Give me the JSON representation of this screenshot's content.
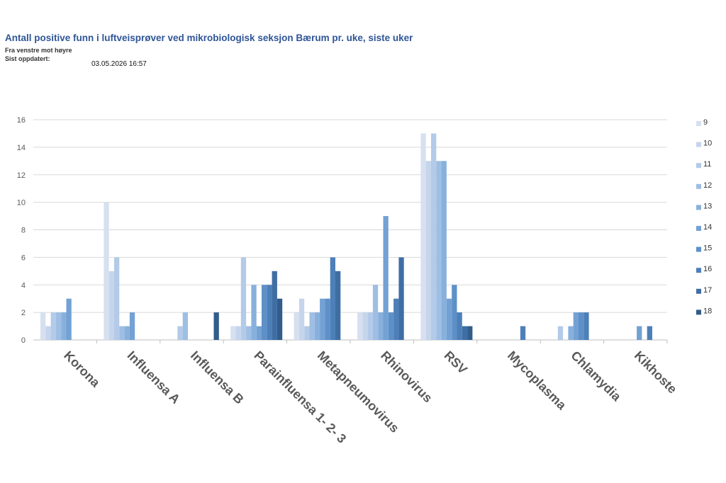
{
  "header": {
    "title": "Antall positive funn i luftveisprøver ved mikrobiologisk seksjon Bærum pr. uke, siste uker",
    "subtitle": "Fra venstre mot høyre",
    "updated_label": "Sist oppdatert:",
    "updated_value": "03.05.2026 16:57"
  },
  "chart_data": {
    "type": "bar",
    "categories": [
      "Korona",
      "Influensa A",
      "Influensa B",
      "Parainfluensa 1- 2- 3",
      "Metapneumovirus",
      "Rhinovirus",
      "RSV",
      "Mycoplasma",
      "Chlamydia",
      "Kikhoste"
    ],
    "series": [
      {
        "name": "9",
        "color": "#D6E0F0",
        "values": [
          2,
          10,
          0,
          1,
          2,
          2,
          15,
          0,
          0,
          0
        ]
      },
      {
        "name": "10",
        "color": "#C5D5EC",
        "values": [
          1,
          5,
          0,
          1,
          3,
          2,
          13,
          0,
          0,
          0
        ]
      },
      {
        "name": "11",
        "color": "#B3CAE8",
        "values": [
          2,
          6,
          1,
          6,
          1,
          2,
          15,
          0,
          1,
          0
        ]
      },
      {
        "name": "12",
        "color": "#9EBEE3",
        "values": [
          2,
          1,
          2,
          1,
          2,
          4,
          13,
          0,
          0,
          0
        ]
      },
      {
        "name": "13",
        "color": "#88B0DC",
        "values": [
          2,
          1,
          0,
          4,
          2,
          2,
          13,
          0,
          1,
          0
        ]
      },
      {
        "name": "14",
        "color": "#73A1D4",
        "values": [
          3,
          2,
          0,
          1,
          3,
          9,
          3,
          0,
          2,
          1
        ]
      },
      {
        "name": "15",
        "color": "#5E90C8",
        "values": [
          0,
          0,
          0,
          4,
          3,
          2,
          4,
          0,
          2,
          0
        ]
      },
      {
        "name": "16",
        "color": "#4D7FB8",
        "values": [
          0,
          0,
          0,
          4,
          6,
          3,
          2,
          1,
          2,
          1
        ]
      },
      {
        "name": "17",
        "color": "#3F6EA4",
        "values": [
          0,
          0,
          0,
          5,
          5,
          6,
          1,
          0,
          0,
          0
        ]
      },
      {
        "name": "18",
        "color": "#315C8C",
        "values": [
          0,
          0,
          2,
          3,
          0,
          0,
          1,
          0,
          0,
          0
        ]
      }
    ],
    "ylim": [
      0,
      16
    ],
    "yticks": [
      "0",
      "2",
      "4",
      "6",
      "8",
      "10",
      "12",
      "14",
      "16"
    ],
    "grid": true,
    "legend_position": "right"
  }
}
